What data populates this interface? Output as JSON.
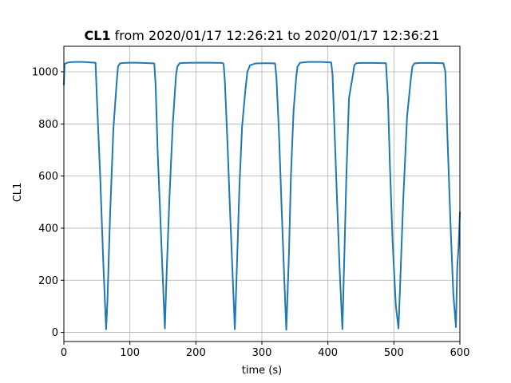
{
  "chart_data": {
    "type": "line",
    "title_bold": "CL1",
    "title_rest": " from 2020/01/17 12:26:21 to 2020/01/17 12:36:21",
    "xlabel": "time (s)",
    "ylabel": "CL1",
    "xlim": [
      0,
      600
    ],
    "ylim": [
      -35,
      1098
    ],
    "xticks": [
      0,
      100,
      200,
      300,
      400,
      500,
      600
    ],
    "yticks": [
      0,
      200,
      400,
      600,
      800,
      1000
    ],
    "grid": true,
    "legend": "none",
    "colors": {
      "line": "#1f77b4",
      "grid": "#b0b0b0",
      "axis": "#000000"
    },
    "series": [
      {
        "x": [
          0,
          1,
          5,
          10,
          20,
          30,
          40,
          48,
          50,
          55,
          60,
          64,
          66,
          70,
          75,
          80,
          82,
          85,
          90,
          100,
          110,
          120,
          137,
          139,
          142,
          146,
          150,
          153,
          156,
          160,
          165,
          170,
          172,
          175,
          180,
          200,
          220,
          240,
          242,
          244,
          248,
          252,
          256,
          259,
          262,
          266,
          270,
          275,
          278,
          282,
          290,
          300,
          310,
          320,
          322,
          326,
          330,
          334,
          337,
          341,
          344,
          348,
          352,
          354,
          358,
          370,
          390,
          405,
          407,
          410,
          414,
          418,
          422,
          425,
          428,
          432,
          438,
          440,
          443,
          450,
          470,
          488,
          491,
          494,
          498,
          503,
          507,
          510,
          514,
          520,
          526,
          528,
          531,
          540,
          560,
          575,
          578,
          581,
          586,
          590,
          594,
          596,
          598,
          600
        ],
        "y": [
          950,
          1030,
          1035,
          1037,
          1038,
          1038,
          1036,
          1035,
          900,
          600,
          250,
          12,
          120,
          450,
          780,
          960,
          1020,
          1032,
          1034,
          1035,
          1035,
          1034,
          1032,
          950,
          700,
          450,
          200,
          15,
          250,
          520,
          800,
          990,
          1020,
          1032,
          1034,
          1035,
          1035,
          1034,
          1030,
          960,
          720,
          450,
          200,
          12,
          240,
          560,
          790,
          930,
          1000,
          1025,
          1032,
          1033,
          1033,
          1032,
          980,
          760,
          470,
          200,
          10,
          300,
          600,
          850,
          980,
          1020,
          1035,
          1038,
          1038,
          1036,
          990,
          780,
          500,
          230,
          12,
          300,
          600,
          900,
          990,
          1025,
          1033,
          1034,
          1034,
          1033,
          900,
          640,
          350,
          100,
          15,
          220,
          500,
          830,
          980,
          1020,
          1032,
          1034,
          1034,
          1033,
          1000,
          760,
          400,
          150,
          20,
          250,
          330,
          460
        ]
      }
    ]
  }
}
